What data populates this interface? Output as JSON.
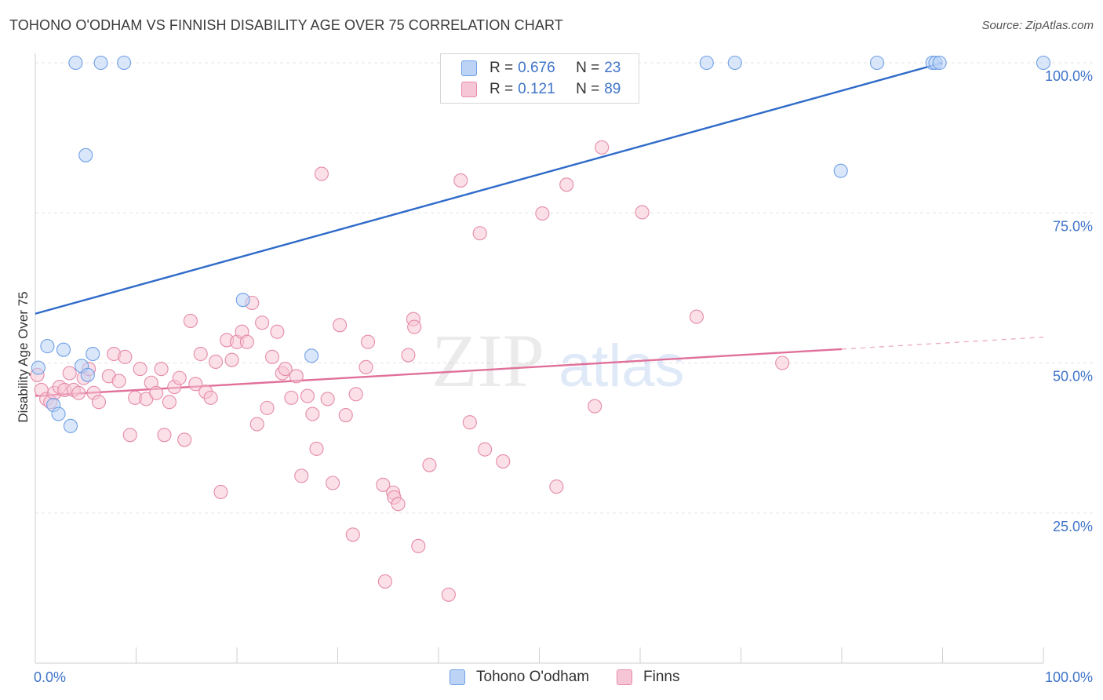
{
  "title": "TOHONO O'ODHAM VS FINNISH DISABILITY AGE OVER 75 CORRELATION CHART",
  "source": "Source: ZipAtlas.com",
  "watermark": {
    "zip": "ZIP",
    "atlas": "atlas"
  },
  "legend": {
    "series1": {
      "r_label": "R =",
      "r_value": "0.676",
      "n_label": "N =",
      "n_value": "23"
    },
    "series2": {
      "r_label": "R =",
      "r_value": "0.121",
      "n_label": "N =",
      "n_value": "89"
    }
  },
  "chart_data": {
    "type": "scatter",
    "title": "TOHONO O'ODHAM VS FINNISH DISABILITY AGE OVER 75 CORRELATION CHART",
    "xlabel": "",
    "ylabel": "Disability Age Over 75",
    "xlim": [
      0,
      100
    ],
    "ylim": [
      0,
      102
    ],
    "x_tick_labels": [
      "0.0%",
      "100.0%"
    ],
    "y_ticks": [
      25,
      50,
      75,
      100
    ],
    "y_tick_labels": [
      "25.0%",
      "50.0%",
      "75.0%",
      "100.0%"
    ],
    "grid": true,
    "series": [
      {
        "name": "Tohono O'odham",
        "color": "#6fa0e6",
        "fill": "#bcd3f5",
        "line_color": "#2f6bc9",
        "trend": {
          "x": [
            0,
            90
          ],
          "y": [
            58.2,
            100
          ]
        },
        "points": [
          [
            0.3,
            49.2
          ],
          [
            1.2,
            52.8
          ],
          [
            1.8,
            43.0
          ],
          [
            2.3,
            41.5
          ],
          [
            2.8,
            52.2
          ],
          [
            3.5,
            39.5
          ],
          [
            4.6,
            49.5
          ],
          [
            5.0,
            84.6
          ],
          [
            5.2,
            48.0
          ],
          [
            5.7,
            51.5
          ],
          [
            4.0,
            100
          ],
          [
            6.5,
            100
          ],
          [
            8.8,
            100
          ],
          [
            20.6,
            60.5
          ],
          [
            27.4,
            51.2
          ],
          [
            66.6,
            100
          ],
          [
            69.4,
            100
          ],
          [
            79.9,
            82.0
          ],
          [
            83.5,
            100
          ],
          [
            89.0,
            100
          ],
          [
            89.3,
            100
          ],
          [
            89.7,
            100
          ],
          [
            100,
            100
          ]
        ]
      },
      {
        "name": "Finns",
        "color": "#e58aa8",
        "fill": "#f7c6d6",
        "line_color": "#e0709a",
        "trend": {
          "x": [
            0,
            80
          ],
          "y": [
            44.5,
            52.3
          ]
        },
        "trend_dashed": {
          "x": [
            80,
            100
          ],
          "y": [
            52.3,
            54.3
          ]
        },
        "points": [
          [
            0.2,
            48.0
          ],
          [
            0.6,
            45.5
          ],
          [
            1.1,
            44.0
          ],
          [
            1.5,
            43.5
          ],
          [
            1.9,
            45.0
          ],
          [
            2.4,
            46.0
          ],
          [
            2.9,
            45.5
          ],
          [
            3.4,
            48.3
          ],
          [
            3.8,
            45.5
          ],
          [
            4.3,
            45.0
          ],
          [
            4.8,
            47.5
          ],
          [
            5.3,
            49.0
          ],
          [
            5.8,
            45.0
          ],
          [
            6.3,
            43.5
          ],
          [
            7.3,
            47.8
          ],
          [
            7.8,
            51.5
          ],
          [
            8.3,
            47.0
          ],
          [
            8.9,
            51.0
          ],
          [
            9.4,
            38.0
          ],
          [
            9.9,
            44.2
          ],
          [
            10.4,
            49.0
          ],
          [
            11.0,
            44.0
          ],
          [
            11.5,
            46.7
          ],
          [
            12.0,
            45.0
          ],
          [
            12.5,
            49.0
          ],
          [
            12.8,
            38.0
          ],
          [
            13.3,
            43.5
          ],
          [
            13.8,
            46.0
          ],
          [
            14.3,
            47.5
          ],
          [
            14.8,
            37.2
          ],
          [
            15.4,
            57.0
          ],
          [
            15.9,
            46.5
          ],
          [
            16.4,
            51.5
          ],
          [
            16.9,
            45.2
          ],
          [
            17.4,
            44.2
          ],
          [
            17.9,
            50.2
          ],
          [
            18.4,
            28.5
          ],
          [
            19.0,
            53.8
          ],
          [
            19.5,
            50.5
          ],
          [
            20.0,
            53.5
          ],
          [
            20.5,
            55.2
          ],
          [
            21.0,
            53.5
          ],
          [
            21.5,
            60.0
          ],
          [
            22.0,
            39.8
          ],
          [
            22.5,
            56.7
          ],
          [
            23.0,
            42.5
          ],
          [
            23.5,
            51.0
          ],
          [
            24.0,
            55.2
          ],
          [
            24.5,
            48.3
          ],
          [
            24.8,
            49.0
          ],
          [
            25.4,
            44.2
          ],
          [
            25.9,
            47.8
          ],
          [
            26.4,
            31.2
          ],
          [
            27.0,
            44.5
          ],
          [
            27.5,
            41.5
          ],
          [
            27.9,
            35.7
          ],
          [
            28.4,
            81.5
          ],
          [
            29.0,
            44.0
          ],
          [
            29.5,
            30.0
          ],
          [
            30.2,
            56.3
          ],
          [
            30.8,
            41.3
          ],
          [
            31.5,
            21.4
          ],
          [
            31.8,
            44.8
          ],
          [
            32.8,
            49.3
          ],
          [
            33.0,
            53.5
          ],
          [
            34.5,
            29.7
          ],
          [
            34.7,
            13.6
          ],
          [
            35.5,
            28.4
          ],
          [
            35.6,
            27.6
          ],
          [
            36.0,
            26.5
          ],
          [
            37.0,
            51.3
          ],
          [
            37.5,
            57.3
          ],
          [
            37.6,
            56.0
          ],
          [
            38.0,
            19.5
          ],
          [
            39.1,
            33.0
          ],
          [
            41.0,
            11.4
          ],
          [
            42.2,
            80.4
          ],
          [
            43.1,
            40.1
          ],
          [
            44.1,
            71.6
          ],
          [
            44.6,
            35.6
          ],
          [
            46.4,
            33.6
          ],
          [
            50.3,
            74.9
          ],
          [
            51.7,
            29.4
          ],
          [
            52.7,
            79.7
          ],
          [
            55.5,
            42.8
          ],
          [
            56.2,
            85.9
          ],
          [
            60.2,
            75.1
          ],
          [
            65.6,
            57.7
          ],
          [
            74.1,
            50.0
          ]
        ]
      }
    ]
  }
}
